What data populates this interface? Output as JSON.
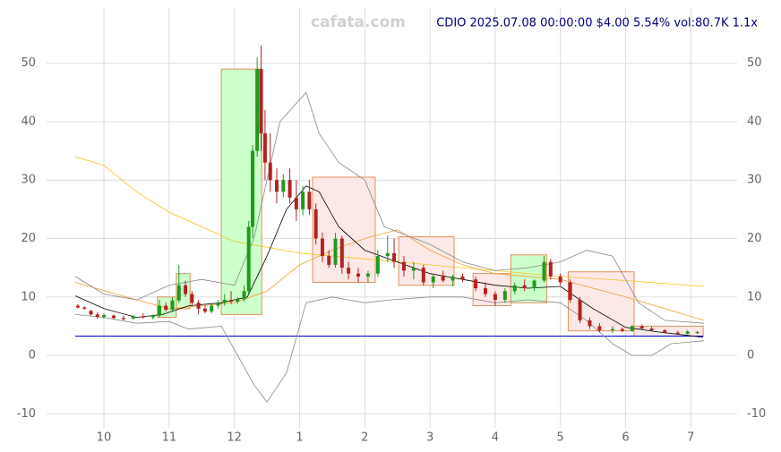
{
  "chart_data": {
    "type": "candlestick",
    "title": "CDIO 2025.07.08 00:00:00 $4.00 5.54% vol:80.7K 1.1x",
    "watermark": "cafata.com",
    "xlim": [
      9.12,
      19.71
    ],
    "ylim": [
      -12.4,
      59.6
    ],
    "yticks": [
      -10,
      0,
      10,
      20,
      30,
      40,
      50
    ],
    "xticks": [
      10,
      11,
      12,
      {
        "value": 13,
        "label": "1"
      },
      {
        "value": 14,
        "label": "2"
      },
      {
        "value": 15,
        "label": "3"
      },
      {
        "value": 16,
        "label": "4"
      },
      {
        "value": 17,
        "label": "5"
      },
      {
        "value": 18,
        "label": "6"
      },
      {
        "value": 19,
        "label": "7"
      }
    ],
    "grid": true,
    "up_color": "#1e9a1e",
    "down_color": "#b22222",
    "boxes": [
      {
        "x": [
          10.82,
          11.11
        ],
        "y": [
          6.5,
          10
        ],
        "color": "#ccffcc"
      },
      {
        "x": [
          11.11,
          11.32
        ],
        "y": [
          8,
          14
        ],
        "color": "#ccffcc"
      },
      {
        "x": [
          11.8,
          12.42
        ],
        "y": [
          7,
          49
        ],
        "color": "#ccffcc"
      },
      {
        "x": [
          13.2,
          14.16
        ],
        "y": [
          12.5,
          30.5
        ],
        "color": "#fde8e8"
      },
      {
        "x": [
          14.52,
          15.37
        ],
        "y": [
          12,
          20.3
        ],
        "color": "#fde8e8"
      },
      {
        "x": [
          15.66,
          16.24
        ],
        "y": [
          8.5,
          14
        ],
        "color": "#fde8e8"
      },
      {
        "x": [
          16.24,
          16.79
        ],
        "y": [
          9,
          17.2
        ],
        "color": "#ccffcc"
      },
      {
        "x": [
          17.12,
          18.13
        ],
        "y": [
          4.2,
          14.3
        ],
        "color": "#fde8e8"
      },
      {
        "x": [
          18.13,
          19.19
        ],
        "y": [
          3.3,
          5
        ],
        "color": "#fde8e8"
      }
    ],
    "box_stroke": "#e0905a",
    "hlines": [
      {
        "y": 3.3,
        "x": [
          9.56,
          19.19
        ],
        "color": "#0000cc"
      }
    ],
    "lines": [
      {
        "color": "#f5c518",
        "x": [
          9.56,
          10.0,
          10.5,
          11.0,
          11.5,
          12.0,
          13.0,
          14.0,
          15.0,
          16.0,
          17.0,
          18.0,
          19.2
        ],
        "values": [
          34,
          32.5,
          28,
          24.5,
          22,
          19.5,
          17.5,
          16.5,
          15.5,
          14.5,
          13.5,
          12.8,
          11.8
        ]
      },
      {
        "color": "#f0a030",
        "x": [
          9.56,
          10.5,
          11.0,
          11.5,
          12.0,
          12.5,
          13.0,
          13.5,
          14.0,
          14.5,
          15.0,
          15.5,
          16.0,
          17.0,
          18.0,
          19.2
        ],
        "values": [
          12.5,
          9.5,
          8,
          8.5,
          9,
          11,
          15.5,
          18,
          20,
          21.5,
          18,
          15.5,
          14,
          13,
          10,
          6
        ]
      },
      {
        "color": "#888888",
        "x": [
          9.56,
          10.0,
          10.5,
          11.0,
          11.5,
          12.0,
          12.3,
          12.7,
          13.1,
          13.3,
          13.6,
          14.0,
          14.3,
          15.0,
          15.5,
          16.0,
          16.5,
          17.0,
          17.4,
          17.8,
          18.2,
          18.6,
          19.2
        ],
        "values": [
          13.5,
          10.5,
          9.5,
          12,
          13,
          12,
          20,
          40,
          45,
          38,
          33,
          30,
          22,
          19,
          16,
          14.5,
          15,
          16,
          18,
          17,
          9,
          6,
          5.5
        ]
      },
      {
        "color": "#888888",
        "x": [
          9.56,
          10.0,
          10.5,
          11.0,
          11.3,
          11.8,
          12.3,
          12.5,
          12.8,
          13.1,
          13.5,
          14.0,
          14.4,
          15.0,
          15.5,
          16.0,
          16.5,
          17.0,
          17.4,
          17.8,
          18.1,
          18.4,
          18.7,
          19.2
        ],
        "values": [
          7,
          6.5,
          5.5,
          5.8,
          4.5,
          5,
          -5,
          -8,
          -3,
          9,
          10,
          9,
          9.5,
          10,
          10,
          9,
          9.5,
          9,
          6,
          2,
          0,
          0,
          2,
          2.5
        ]
      },
      {
        "color": "#000000",
        "x": [
          9.56,
          10.0,
          10.5,
          10.9,
          11.3,
          11.8,
          12.2,
          12.5,
          12.8,
          13.1,
          13.3,
          13.6,
          14.0,
          14.5,
          15.0,
          15.5,
          16.0,
          16.5,
          17.0,
          17.5,
          18.0,
          18.5,
          19.19
        ],
        "values": [
          10.2,
          8,
          6.5,
          7,
          8.5,
          9,
          10,
          17,
          25,
          29,
          28,
          22,
          18,
          16,
          14,
          13,
          12,
          11.5,
          11.8,
          8,
          4.8,
          4,
          3.1
        ]
      }
    ],
    "candles": {
      "x": [
        9.6,
        9.7,
        9.8,
        9.9,
        10.0,
        10.15,
        10.3,
        10.45,
        10.6,
        10.75,
        10.85,
        10.95,
        11.05,
        11.15,
        11.25,
        11.35,
        11.45,
        11.55,
        11.65,
        11.75,
        11.85,
        11.95,
        12.05,
        12.15,
        12.22,
        12.28,
        12.35,
        12.41,
        12.47,
        12.55,
        12.65,
        12.75,
        12.85,
        12.95,
        13.05,
        13.15,
        13.25,
        13.35,
        13.45,
        13.55,
        13.65,
        13.75,
        13.9,
        14.05,
        14.2,
        14.35,
        14.45,
        14.6,
        14.75,
        14.9,
        15.05,
        15.2,
        15.35,
        15.5,
        15.7,
        15.85,
        16.0,
        16.15,
        16.3,
        16.45,
        16.6,
        16.75,
        16.85,
        17.0,
        17.15,
        17.3,
        17.45,
        17.6,
        17.8,
        17.95,
        18.1,
        18.25,
        18.4,
        18.6,
        18.8,
        18.95,
        19.1
      ],
      "open": [
        8.5,
        8.2,
        7.6,
        7.0,
        6.6,
        6.8,
        6.4,
        6.3,
        6.7,
        6.5,
        6.8,
        8.5,
        7.8,
        9.4,
        12,
        10.5,
        9,
        8,
        7.5,
        8.5,
        9,
        9.5,
        9.2,
        9.6,
        11,
        22,
        35,
        49,
        38,
        33,
        30,
        28,
        30,
        27,
        25,
        28,
        25,
        20,
        17,
        15.5,
        20,
        15,
        14,
        13.5,
        14,
        17,
        17.5,
        16,
        14.5,
        15,
        12.5,
        13.5,
        12.8,
        13.5,
        13,
        11.5,
        10.5,
        9.5,
        11,
        12,
        11.5,
        12.8,
        16,
        13.5,
        12.5,
        9.5,
        6,
        5,
        4.3,
        4.5,
        4.2,
        5,
        4.6,
        4.3,
        3.9,
        3.7,
        3.8
      ],
      "high": [
        8.8,
        8.4,
        7.8,
        7.4,
        7.2,
        7,
        6.8,
        6.9,
        7.2,
        7.0,
        9.5,
        9,
        10,
        15.5,
        12.8,
        11,
        9.5,
        8.5,
        8.8,
        9.5,
        10.5,
        11,
        10,
        12,
        23,
        36,
        51,
        53,
        42,
        38,
        32,
        31,
        32,
        30,
        29,
        30,
        26,
        21,
        18,
        21,
        20.5,
        16,
        15,
        14.5,
        18,
        20.5,
        20,
        17,
        16,
        15.5,
        14,
        14.5,
        13.8,
        14,
        13.5,
        12.5,
        11,
        11.5,
        12.5,
        13,
        13,
        17,
        16.5,
        14,
        13,
        10,
        6.5,
        5.5,
        5,
        4.8,
        5.2,
        5.3,
        4.9,
        4.5,
        4.2,
        4.3,
        4.2
      ],
      "low": [
        8,
        7.8,
        6.8,
        6.3,
        6.3,
        6.2,
        6.0,
        6.1,
        6.3,
        6.2,
        6.5,
        7.5,
        7.6,
        9,
        10,
        8.5,
        7,
        7.2,
        7.2,
        8,
        8.5,
        8.8,
        8.8,
        9.2,
        10.5,
        20,
        34,
        35,
        30,
        28,
        26,
        27,
        26,
        23,
        24,
        24,
        19,
        16,
        15,
        15,
        14,
        13,
        12.5,
        12.5,
        13.5,
        16,
        15,
        13.5,
        13,
        12,
        11.5,
        12.5,
        11.8,
        12.5,
        11,
        10,
        8.5,
        9,
        10.5,
        11,
        11,
        12.5,
        13,
        12,
        9,
        5.5,
        4.5,
        4,
        3.8,
        4,
        4,
        4.4,
        4.2,
        3.8,
        3.5,
        3.6,
        3.7
      ],
      "close": [
        8.2,
        8.0,
        7.0,
        6.6,
        6.9,
        6.4,
        6.2,
        6.7,
        6.5,
        6.8,
        8.5,
        7.8,
        9.4,
        12,
        10.5,
        9,
        8,
        7.5,
        8.5,
        9,
        9.5,
        9.2,
        9.6,
        11,
        22,
        35,
        49,
        38,
        33,
        30,
        28,
        30,
        27,
        25,
        28,
        25,
        20,
        17,
        15.5,
        20,
        15,
        14,
        13.5,
        14,
        17,
        17.5,
        16,
        14.5,
        15,
        12.5,
        13.5,
        12.8,
        13.5,
        13,
        11.5,
        10.5,
        9.5,
        11,
        12,
        11.5,
        12.8,
        16,
        13.5,
        12.5,
        9.5,
        6,
        5,
        4.3,
        4.5,
        4.2,
        5,
        4.6,
        4.3,
        3.9,
        3.7,
        4.1,
        4.0
      ]
    }
  }
}
